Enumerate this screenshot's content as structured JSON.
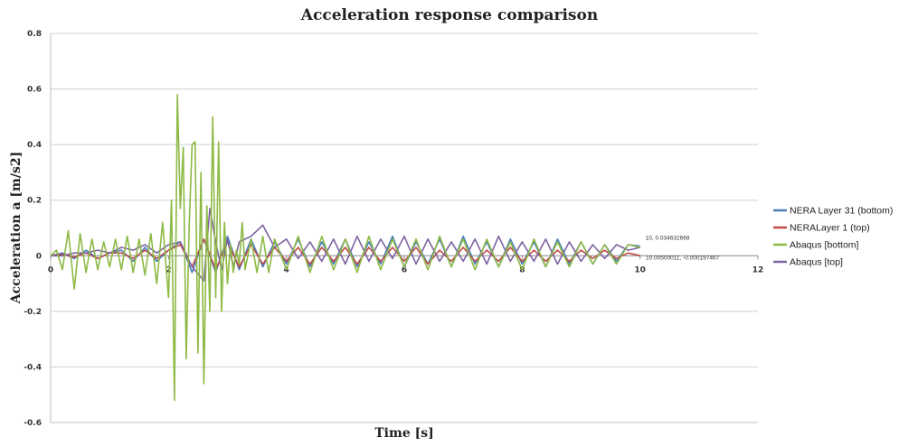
{
  "chart_data": {
    "type": "line",
    "title": "Acceleration response comparison",
    "xlabel": "Time [s]",
    "ylabel": "Acceleration a [m/s2]",
    "xlim": [
      0,
      12
    ],
    "ylim": [
      -0.6,
      0.8
    ],
    "x_ticks": [
      "0",
      "2",
      "4",
      "6",
      "8",
      "10",
      "12"
    ],
    "y_ticks": [
      "-0.6",
      "-0.4",
      "-0.2",
      "0",
      "0.2",
      "0.4",
      "0.6",
      "0.8"
    ],
    "grid": "horizontal",
    "legend_position": "right",
    "annotations": [
      {
        "text": "10, 0.034632668",
        "x": 10,
        "y": 0.0346
      },
      {
        "text": "10.00500011, -0.000197467",
        "x": 10.005,
        "y": -0.0002
      }
    ],
    "series": [
      {
        "name": "NERA Layer 31 (bottom)",
        "color": "#4a7ebb",
        "x": [
          0,
          0.2,
          0.4,
          0.6,
          0.8,
          1.0,
          1.2,
          1.4,
          1.6,
          1.8,
          2.0,
          2.2,
          2.4,
          2.6,
          2.8,
          3.0,
          3.2,
          3.4,
          3.6,
          3.8,
          4.0,
          4.2,
          4.4,
          4.6,
          4.8,
          5.0,
          5.2,
          5.4,
          5.6,
          5.8,
          6.0,
          6.2,
          6.4,
          6.6,
          6.8,
          7.0,
          7.2,
          7.4,
          7.6,
          7.8,
          8.0,
          8.2,
          8.4,
          8.6,
          8.8,
          9.0,
          9.2,
          9.4,
          9.6,
          9.8,
          10.0
        ],
        "values": [
          0,
          0.01,
          -0.01,
          0.02,
          -0.01,
          0.01,
          0.02,
          -0.02,
          0.03,
          -0.02,
          0.02,
          0.05,
          -0.06,
          0.06,
          -0.06,
          0.07,
          -0.05,
          0.06,
          -0.04,
          0.05,
          -0.03,
          0.06,
          -0.04,
          0.05,
          -0.03,
          0.06,
          -0.04,
          0.05,
          -0.03,
          0.07,
          -0.04,
          0.05,
          -0.03,
          0.06,
          -0.04,
          0.07,
          -0.03,
          0.05,
          -0.04,
          0.06,
          -0.03,
          0.05,
          -0.04,
          0.06,
          -0.03,
          0.05,
          -0.03,
          0.04,
          -0.02,
          0.04,
          0.0346
        ]
      },
      {
        "name": "NERALayer 1 (top)",
        "color": "#be4b48",
        "x": [
          0,
          0.2,
          0.4,
          0.6,
          0.8,
          1.0,
          1.2,
          1.4,
          1.6,
          1.8,
          2.0,
          2.2,
          2.4,
          2.6,
          2.8,
          3.0,
          3.2,
          3.4,
          3.6,
          3.8,
          4.0,
          4.2,
          4.4,
          4.6,
          4.8,
          5.0,
          5.2,
          5.4,
          5.6,
          5.8,
          6.0,
          6.2,
          6.4,
          6.6,
          6.8,
          7.0,
          7.2,
          7.4,
          7.6,
          7.8,
          8.0,
          8.2,
          8.4,
          8.6,
          8.8,
          9.0,
          9.2,
          9.4,
          9.6,
          9.8,
          10.005
        ],
        "values": [
          0,
          0.005,
          -0.005,
          0.01,
          -0.01,
          0.01,
          0.01,
          -0.01,
          0.02,
          -0.01,
          0.02,
          0.04,
          -0.04,
          0.06,
          -0.05,
          0.05,
          -0.04,
          0.04,
          -0.03,
          0.03,
          -0.02,
          0.03,
          -0.03,
          0.03,
          -0.02,
          0.03,
          -0.03,
          0.03,
          -0.02,
          0.03,
          -0.02,
          0.03,
          -0.03,
          0.02,
          -0.02,
          0.03,
          -0.02,
          0.02,
          -0.02,
          0.03,
          -0.02,
          0.02,
          -0.02,
          0.02,
          -0.02,
          0.02,
          -0.01,
          0.02,
          -0.01,
          0.01,
          -0.0002
        ]
      },
      {
        "name": "Abaqus [bottom]",
        "color": "#8db945",
        "x": [
          0,
          0.1,
          0.2,
          0.3,
          0.4,
          0.5,
          0.6,
          0.7,
          0.8,
          0.9,
          1.0,
          1.1,
          1.2,
          1.3,
          1.4,
          1.5,
          1.6,
          1.7,
          1.8,
          1.9,
          2.0,
          2.05,
          2.1,
          2.15,
          2.2,
          2.25,
          2.3,
          2.35,
          2.4,
          2.45,
          2.5,
          2.55,
          2.6,
          2.65,
          2.7,
          2.75,
          2.8,
          2.85,
          2.9,
          2.95,
          3.0,
          3.05,
          3.1,
          3.15,
          3.2,
          3.25,
          3.3,
          3.4,
          3.5,
          3.6,
          3.7,
          3.8,
          4.0,
          4.2,
          4.4,
          4.6,
          4.8,
          5.0,
          5.2,
          5.4,
          5.6,
          5.8,
          6.0,
          6.2,
          6.4,
          6.6,
          6.8,
          7.0,
          7.2,
          7.4,
          7.6,
          7.8,
          8.0,
          8.2,
          8.4,
          8.6,
          8.8,
          9.0,
          9.2,
          9.4,
          9.6,
          9.8,
          10.0
        ],
        "values": [
          0,
          0.02,
          -0.05,
          0.09,
          -0.12,
          0.08,
          -0.06,
          0.06,
          -0.05,
          0.05,
          -0.04,
          0.06,
          -0.05,
          0.07,
          -0.06,
          0.06,
          -0.07,
          0.08,
          -0.1,
          0.12,
          -0.15,
          0.2,
          -0.52,
          0.58,
          0.17,
          0.39,
          -0.37,
          0.1,
          0.4,
          0.41,
          -0.35,
          0.3,
          -0.46,
          0.18,
          -0.2,
          0.5,
          -0.15,
          0.41,
          -0.2,
          0.12,
          -0.1,
          0.04,
          -0.06,
          0.02,
          -0.03,
          0.12,
          -0.05,
          0.06,
          -0.06,
          0.07,
          -0.06,
          0.06,
          -0.05,
          0.07,
          -0.06,
          0.07,
          -0.05,
          0.06,
          -0.06,
          0.07,
          -0.05,
          0.06,
          -0.04,
          0.06,
          -0.05,
          0.07,
          -0.04,
          0.06,
          -0.05,
          0.06,
          -0.04,
          0.05,
          -0.05,
          0.06,
          -0.04,
          0.05,
          -0.04,
          0.05,
          -0.03,
          0.04,
          -0.03,
          0.04,
          0.03
        ]
      },
      {
        "name": "Abaqus [top]",
        "color": "#7e63a2",
        "x": [
          0,
          0.2,
          0.4,
          0.6,
          0.8,
          1.0,
          1.2,
          1.4,
          1.6,
          1.8,
          2.0,
          2.2,
          2.4,
          2.6,
          2.7,
          2.8,
          2.9,
          3.0,
          3.1,
          3.2,
          3.4,
          3.6,
          3.8,
          4.0,
          4.2,
          4.4,
          4.6,
          4.8,
          5.0,
          5.2,
          5.4,
          5.6,
          5.8,
          6.0,
          6.2,
          6.4,
          6.6,
          6.8,
          7.0,
          7.2,
          7.4,
          7.6,
          7.8,
          8.0,
          8.2,
          8.4,
          8.6,
          8.8,
          9.0,
          9.2,
          9.4,
          9.6,
          9.8,
          10.0
        ],
        "values": [
          0,
          0,
          0.01,
          0.01,
          0.02,
          0.01,
          0.03,
          0.02,
          0.04,
          0.01,
          0.04,
          0.05,
          -0.04,
          -0.09,
          0.17,
          0.05,
          -0.05,
          0.06,
          -0.04,
          0.05,
          0.07,
          0.11,
          0.03,
          0.06,
          -0.01,
          0.05,
          -0.02,
          0.06,
          -0.03,
          0.07,
          -0.02,
          0.06,
          -0.01,
          0.07,
          -0.03,
          0.06,
          -0.02,
          0.05,
          -0.02,
          0.06,
          -0.03,
          0.07,
          -0.02,
          0.05,
          -0.02,
          0.06,
          -0.03,
          0.05,
          -0.02,
          0.04,
          -0.01,
          0.04,
          0.02,
          0.03
        ]
      }
    ]
  }
}
